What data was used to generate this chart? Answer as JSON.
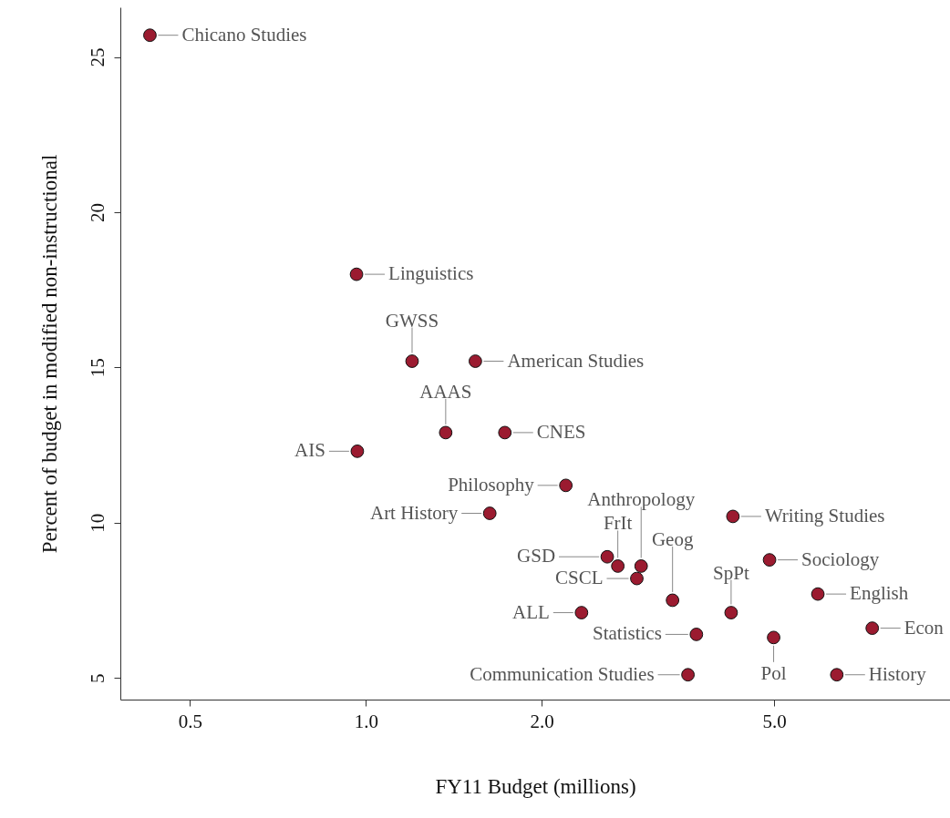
{
  "chart_data": {
    "type": "scatter",
    "xlabel": "FY11 Budget (millions)",
    "ylabel": "Percent of budget in modified non-instructional",
    "log": "x",
    "grid": false,
    "marker": "circle",
    "xlim": [
      0.38,
      10
    ],
    "xticks": [
      0.5,
      {
        "value": 1,
        "label": "1.0"
      },
      {
        "value": 2,
        "label": "2.0"
      },
      {
        "value": 5,
        "label": "5.0"
      }
    ],
    "ylim": [
      4.3,
      26.6
    ],
    "yticks": [
      5,
      10,
      15,
      20,
      25
    ],
    "x": [
      0.427,
      0.964,
      1.2,
      1.54,
      1.37,
      1.73,
      0.967,
      2.2,
      1.63,
      4.25,
      2.59,
      2.7,
      2.96,
      2.91,
      4.91,
      3.35,
      4.22,
      5.94,
      2.34,
      7.36,
      3.68,
      4.99,
      6.4,
      3.56
    ],
    "series": [
      {
        "color": "#9b1b30",
        "values": [
          25.7,
          18.0,
          15.2,
          15.2,
          12.9,
          12.9,
          12.3,
          11.2,
          10.3,
          10.2,
          8.9,
          8.6,
          8.6,
          8.2,
          8.8,
          7.5,
          7.1,
          7.7,
          7.1,
          6.6,
          6.4,
          6.3,
          5.1,
          5.1
        ]
      }
    ],
    "annotations": [
      {
        "text": "Chicano Studies",
        "x": 0.427,
        "y": 25.7
      },
      {
        "text": "Linguistics",
        "x": 0.964,
        "y": 18.0
      },
      {
        "text": "GWSS",
        "x": 1.2,
        "y": 15.2
      },
      {
        "text": "American Studies",
        "x": 1.54,
        "y": 15.2
      },
      {
        "text": "AAAS",
        "x": 1.37,
        "y": 12.9
      },
      {
        "text": "CNES",
        "x": 1.73,
        "y": 12.9
      },
      {
        "text": "AIS",
        "x": 0.967,
        "y": 12.3
      },
      {
        "text": "Philosophy",
        "x": 2.2,
        "y": 11.2
      },
      {
        "text": "Art History",
        "x": 1.63,
        "y": 10.3
      },
      {
        "text": "Writing Studies",
        "x": 4.25,
        "y": 10.2
      },
      {
        "text": "GSD",
        "x": 2.59,
        "y": 8.9
      },
      {
        "text": "FrIt",
        "x": 2.7,
        "y": 8.6
      },
      {
        "text": "Anthropology",
        "x": 2.96,
        "y": 8.6
      },
      {
        "text": "CSCL",
        "x": 2.91,
        "y": 8.2
      },
      {
        "text": "Sociology",
        "x": 4.91,
        "y": 8.8
      },
      {
        "text": "Geog",
        "x": 3.35,
        "y": 7.5
      },
      {
        "text": "SpPt",
        "x": 4.22,
        "y": 7.1
      },
      {
        "text": "English",
        "x": 5.94,
        "y": 7.7
      },
      {
        "text": "ALL",
        "x": 2.34,
        "y": 7.1
      },
      {
        "text": "Econ",
        "x": 7.36,
        "y": 6.6
      },
      {
        "text": "Statistics",
        "x": 3.68,
        "y": 6.4
      },
      {
        "text": "Pol",
        "x": 4.99,
        "y": 6.3
      },
      {
        "text": "History",
        "x": 6.4,
        "y": 5.1
      },
      {
        "text": "Communication Studies",
        "x": 3.56,
        "y": 5.1
      }
    ]
  }
}
